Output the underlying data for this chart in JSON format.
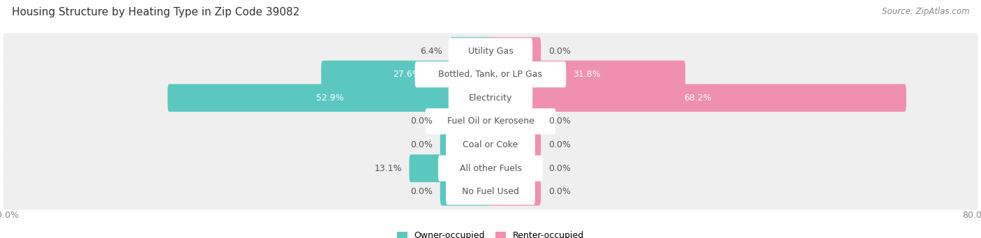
{
  "title": "Housing Structure by Heating Type in Zip Code 39082",
  "source": "Source: ZipAtlas.com",
  "categories": [
    "Utility Gas",
    "Bottled, Tank, or LP Gas",
    "Electricity",
    "Fuel Oil or Kerosene",
    "Coal or Coke",
    "All other Fuels",
    "No Fuel Used"
  ],
  "owner_values": [
    6.4,
    27.6,
    52.9,
    0.0,
    0.0,
    13.1,
    0.0
  ],
  "renter_values": [
    0.0,
    31.8,
    68.2,
    0.0,
    0.0,
    0.0,
    0.0
  ],
  "owner_color": "#5BC8C0",
  "renter_color": "#F090B0",
  "row_bg_color": "#EFEFEF",
  "axis_limit": 80.0,
  "stub_size": 8.0,
  "label_color_dark": "#555555",
  "label_color_white": "#FFFFFF",
  "title_fontsize": 11,
  "source_fontsize": 8.5,
  "bar_label_fontsize": 9,
  "category_fontsize": 9,
  "legend_fontsize": 9,
  "axis_fontsize": 9,
  "figsize": [
    14.06,
    3.41
  ],
  "dpi": 100
}
